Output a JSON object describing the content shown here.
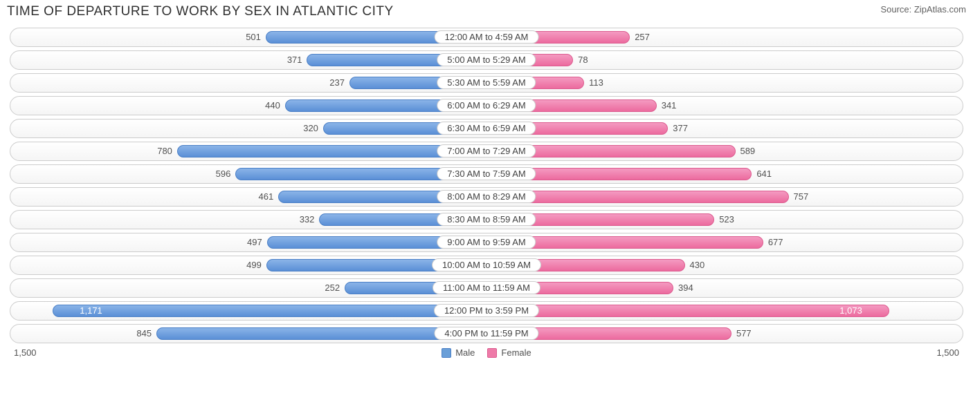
{
  "chart": {
    "title": "TIME OF DEPARTURE TO WORK BY SEX IN ATLANTIC CITY",
    "source": "Source: ZipAtlas.com",
    "type": "diverging-bar",
    "max_value": 1500,
    "axis_label_left": "1,500",
    "axis_label_right": "1,500",
    "male_color": "#6a9fd8",
    "male_border": "#4a7fc6",
    "female_color": "#ee7aa8",
    "female_border": "#dc5a8e",
    "row_bg_top": "#ffffff",
    "row_bg_bottom": "#f5f5f5",
    "row_border": "#cccccc",
    "label_bg": "#ffffff",
    "text_color": "#505050",
    "inside_text_color": "#ffffff",
    "title_fontsize": 19,
    "label_fontsize": 13,
    "legend": {
      "male": "Male",
      "female": "Female"
    },
    "rows": [
      {
        "category": "12:00 AM to 4:59 AM",
        "male": 501,
        "male_label": "501",
        "female": 257,
        "female_label": "257"
      },
      {
        "category": "5:00 AM to 5:29 AM",
        "male": 371,
        "male_label": "371",
        "female": 78,
        "female_label": "78"
      },
      {
        "category": "5:30 AM to 5:59 AM",
        "male": 237,
        "male_label": "237",
        "female": 113,
        "female_label": "113"
      },
      {
        "category": "6:00 AM to 6:29 AM",
        "male": 440,
        "male_label": "440",
        "female": 341,
        "female_label": "341"
      },
      {
        "category": "6:30 AM to 6:59 AM",
        "male": 320,
        "male_label": "320",
        "female": 377,
        "female_label": "377"
      },
      {
        "category": "7:00 AM to 7:29 AM",
        "male": 780,
        "male_label": "780",
        "female": 589,
        "female_label": "589"
      },
      {
        "category": "7:30 AM to 7:59 AM",
        "male": 596,
        "male_label": "596",
        "female": 641,
        "female_label": "641"
      },
      {
        "category": "8:00 AM to 8:29 AM",
        "male": 461,
        "male_label": "461",
        "female": 757,
        "female_label": "757"
      },
      {
        "category": "8:30 AM to 8:59 AM",
        "male": 332,
        "male_label": "332",
        "female": 523,
        "female_label": "523"
      },
      {
        "category": "9:00 AM to 9:59 AM",
        "male": 497,
        "male_label": "497",
        "female": 677,
        "female_label": "677"
      },
      {
        "category": "10:00 AM to 10:59 AM",
        "male": 499,
        "male_label": "499",
        "female": 430,
        "female_label": "430"
      },
      {
        "category": "11:00 AM to 11:59 AM",
        "male": 252,
        "male_label": "252",
        "female": 394,
        "female_label": "394"
      },
      {
        "category": "12:00 PM to 3:59 PM",
        "male": 1171,
        "male_label": "1,171",
        "female": 1073,
        "female_label": "1,073"
      },
      {
        "category": "4:00 PM to 11:59 PM",
        "male": 845,
        "male_label": "845",
        "female": 577,
        "female_label": "577"
      }
    ]
  }
}
